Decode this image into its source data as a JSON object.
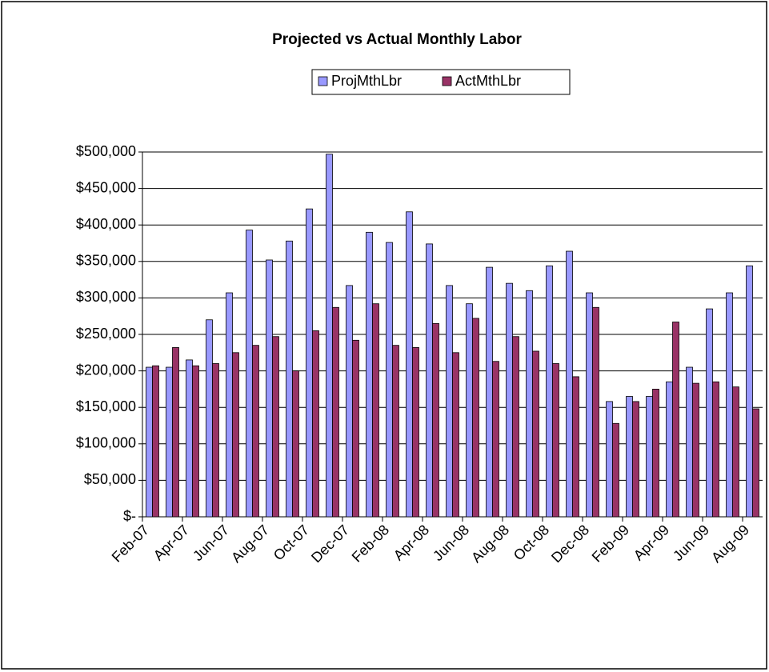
{
  "chart_data": {
    "type": "bar",
    "title": "Projected vs Actual Monthly Labor",
    "categories": [
      "Feb-07",
      null,
      "Apr-07",
      null,
      "Jun-07",
      null,
      "Aug-07",
      null,
      "Oct-07",
      null,
      "Dec-07",
      null,
      "Feb-08",
      null,
      "Apr-08",
      null,
      "Jun-08",
      null,
      "Aug-08",
      null,
      "Oct-08",
      null,
      "Dec-08",
      null,
      "Feb-09",
      null,
      "Apr-09",
      null,
      "Jun-09",
      null,
      "Aug-09"
    ],
    "series": [
      {
        "name": "ProjMthLbr",
        "color": "#9999ff",
        "values": [
          205000,
          205000,
          215000,
          270000,
          307000,
          393000,
          352000,
          378000,
          422000,
          497000,
          317000,
          390000,
          376000,
          418000,
          374000,
          317000,
          292000,
          342000,
          320000,
          310000,
          344000,
          364000,
          307000,
          158000,
          165000,
          165000,
          185000,
          205000,
          285000,
          307000,
          344000
        ]
      },
      {
        "name": "ActMthLbr",
        "color": "#993366",
        "values": [
          207000,
          232000,
          207000,
          210000,
          225000,
          235000,
          247000,
          200000,
          255000,
          287000,
          242000,
          292000,
          235000,
          232000,
          265000,
          225000,
          272000,
          213000,
          247000,
          227000,
          210000,
          192000,
          287000,
          128000,
          158000,
          175000,
          267000,
          183000,
          185000,
          178000,
          148000
        ]
      }
    ],
    "ylim": [
      0,
      500000
    ],
    "yticks": [
      {
        "value": 0,
        "label": "$-"
      },
      {
        "value": 50000,
        "label": "$50,000"
      },
      {
        "value": 100000,
        "label": "$100,000"
      },
      {
        "value": 150000,
        "label": "$150,000"
      },
      {
        "value": 200000,
        "label": "$200,000"
      },
      {
        "value": 250000,
        "label": "$250,000"
      },
      {
        "value": 300000,
        "label": "$300,000"
      },
      {
        "value": 350000,
        "label": "$350,000"
      },
      {
        "value": 400000,
        "label": "$400,000"
      },
      {
        "value": 450000,
        "label": "$450,000"
      },
      {
        "value": 500000,
        "label": "$500,000"
      }
    ],
    "grid": true,
    "legend": "top"
  }
}
